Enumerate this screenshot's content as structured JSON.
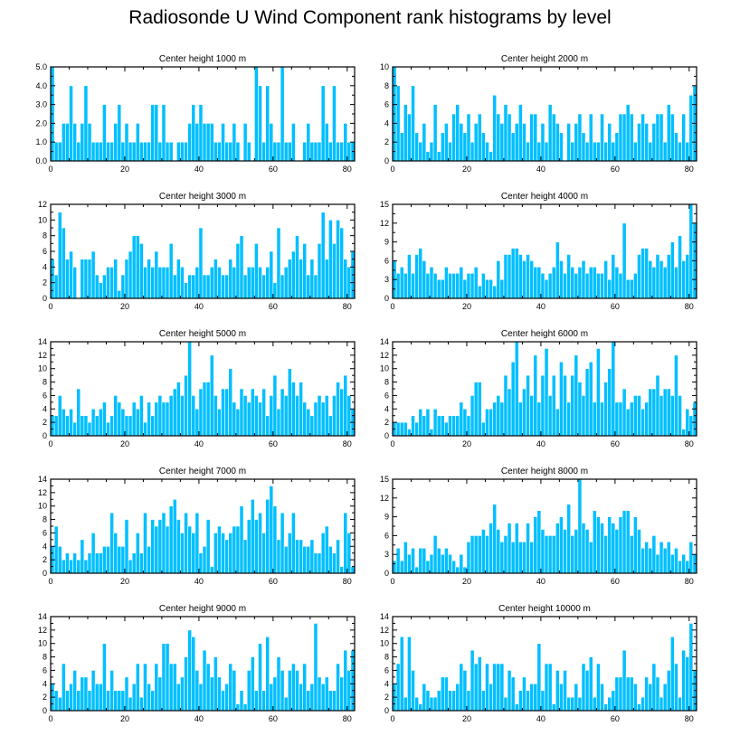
{
  "title": "Radiosonde U Wind Component rank histograms by level",
  "colors": {
    "bar": "#00BFFF",
    "barEdge": "#FFFFFF",
    "axis": "#000000"
  },
  "chart_data": [
    {
      "type": "bar",
      "title": "Center height 1000 m",
      "xlim": [
        0,
        82
      ],
      "xticks": [
        0,
        20,
        40,
        60,
        80
      ],
      "ylim": [
        0,
        5
      ],
      "yticks": [
        "0.0",
        "1.0",
        "2.0",
        "3.0",
        "4.0",
        "5.0"
      ],
      "values": [
        5,
        1,
        1,
        2,
        2,
        4,
        2,
        1,
        2,
        4,
        2,
        1,
        1,
        1,
        3,
        1,
        1,
        2,
        3,
        1,
        2,
        1,
        1,
        2,
        1,
        1,
        1,
        3,
        3,
        1,
        3,
        1,
        1,
        0,
        1,
        1,
        1,
        2,
        3,
        2,
        3,
        2,
        2,
        2,
        1,
        1,
        2,
        1,
        1,
        2,
        1,
        0,
        2,
        1,
        0,
        5,
        4,
        1,
        4,
        2,
        1,
        1,
        5,
        1,
        1,
        2,
        0,
        0,
        1,
        2,
        1,
        1,
        1,
        4,
        2,
        1,
        4,
        1,
        1,
        2,
        1,
        1
      ]
    },
    {
      "type": "bar",
      "title": "Center height 2000 m",
      "xlim": [
        0,
        82
      ],
      "xticks": [
        0,
        20,
        40,
        60,
        80
      ],
      "ylim": [
        0,
        10
      ],
      "yticks": [
        "0",
        "2",
        "4",
        "6",
        "8",
        "10"
      ],
      "values": [
        10,
        8,
        3,
        6,
        5,
        8,
        3,
        2,
        4,
        1,
        2,
        6,
        1,
        3,
        4,
        2,
        5,
        6,
        4,
        3,
        5,
        2,
        4,
        5,
        3,
        2,
        1,
        7,
        5,
        4,
        6,
        5,
        3,
        4,
        6,
        4,
        2,
        5,
        5,
        2,
        4,
        2,
        6,
        5,
        4,
        3,
        0,
        4,
        2,
        4,
        5,
        3,
        2,
        5,
        2,
        2,
        5,
        2,
        4,
        2,
        3,
        5,
        5,
        6,
        5,
        2,
        4,
        5,
        4,
        2,
        4,
        5,
        5,
        2,
        6,
        5,
        3,
        2,
        5,
        2,
        7,
        8
      ]
    },
    {
      "type": "bar",
      "title": "Center height 3000 m",
      "xlim": [
        0,
        82
      ],
      "xticks": [
        0,
        20,
        40,
        60,
        80
      ],
      "ylim": [
        0,
        12
      ],
      "yticks": [
        "0",
        "2",
        "4",
        "6",
        "8",
        "10",
        "12"
      ],
      "values": [
        5,
        3,
        11,
        9,
        5,
        6,
        4,
        0,
        5,
        5,
        5,
        6,
        3,
        2,
        3,
        4,
        4,
        5,
        1,
        3,
        5,
        6,
        8,
        8,
        7,
        4,
        5,
        4,
        6,
        4,
        4,
        4,
        7,
        3,
        5,
        4,
        2,
        3,
        3,
        4,
        9,
        3,
        3,
        4,
        5,
        4,
        3,
        3,
        5,
        4,
        7,
        8,
        3,
        4,
        4,
        7,
        4,
        3,
        4,
        6,
        2,
        9,
        3,
        4,
        5,
        6,
        8,
        5,
        7,
        3,
        5,
        3,
        7,
        11,
        5,
        10,
        7,
        10,
        9,
        5,
        4,
        6
      ]
    },
    {
      "type": "bar",
      "title": "Center height 4000 m",
      "xlim": [
        0,
        82
      ],
      "xticks": [
        0,
        20,
        40,
        60,
        80
      ],
      "ylim": [
        0,
        15
      ],
      "yticks": [
        "0",
        "3",
        "6",
        "9",
        "12",
        "15"
      ],
      "values": [
        6,
        4,
        5,
        4,
        7,
        4,
        7,
        8,
        6,
        4,
        5,
        4,
        3,
        3,
        5,
        4,
        4,
        4,
        5,
        3,
        4,
        4,
        5,
        2,
        4,
        3,
        3,
        2,
        6,
        3,
        7,
        7,
        8,
        8,
        7,
        6,
        7,
        6,
        5,
        5,
        4,
        3,
        4,
        5,
        9,
        6,
        4,
        7,
        5,
        4,
        5,
        6,
        4,
        5,
        5,
        4,
        4,
        6,
        3,
        7,
        5,
        4,
        12,
        3,
        3,
        4,
        7,
        8,
        8,
        6,
        5,
        7,
        6,
        5,
        7,
        9,
        5,
        10,
        6,
        7,
        15,
        12
      ]
    },
    {
      "type": "bar",
      "title": "Center height 5000 m",
      "xlim": [
        0,
        82
      ],
      "xticks": [
        0,
        20,
        40,
        60,
        80
      ],
      "ylim": [
        0,
        14
      ],
      "yticks": [
        "0",
        "2",
        "4",
        "6",
        "8",
        "10",
        "12",
        "14"
      ],
      "values": [
        3,
        3,
        6,
        4,
        3,
        4,
        2,
        7,
        3,
        3,
        2,
        4,
        3,
        4,
        5,
        2,
        3,
        6,
        5,
        4,
        3,
        3,
        5,
        4,
        6,
        2,
        5,
        3,
        5,
        6,
        5,
        5,
        6,
        7,
        8,
        6,
        9,
        14,
        6,
        4,
        7,
        8,
        8,
        12,
        6,
        4,
        7,
        7,
        10,
        5,
        4,
        7,
        6,
        5,
        7,
        6,
        5,
        7,
        3,
        6,
        9,
        4,
        7,
        6,
        10,
        8,
        6,
        8,
        5,
        4,
        3,
        5,
        6,
        5,
        6,
        3,
        6,
        8,
        7,
        9,
        6,
        4
      ]
    },
    {
      "type": "bar",
      "title": "Center height 6000 m",
      "xlim": [
        0,
        82
      ],
      "xticks": [
        0,
        20,
        40,
        60,
        80
      ],
      "ylim": [
        0,
        14
      ],
      "yticks": [
        "0",
        "2",
        "4",
        "6",
        "8",
        "10",
        "12",
        "14"
      ],
      "values": [
        2,
        2,
        2,
        2,
        1,
        3,
        2,
        4,
        3,
        4,
        1,
        4,
        3,
        3,
        2,
        3,
        3,
        3,
        5,
        4,
        3,
        6,
        8,
        8,
        2,
        4,
        4,
        5,
        6,
        5,
        9,
        7,
        11,
        14,
        5,
        7,
        9,
        6,
        12,
        5,
        9,
        13,
        6,
        9,
        4,
        11,
        9,
        5,
        9,
        12,
        8,
        6,
        10,
        11,
        5,
        13,
        5,
        8,
        10,
        14,
        5,
        5,
        7,
        4,
        5,
        6,
        6,
        4,
        5,
        7,
        7,
        9,
        6,
        7,
        7,
        6,
        12,
        6,
        1,
        4,
        3,
        5
      ]
    },
    {
      "type": "bar",
      "title": "Center height 7000 m",
      "xlim": [
        0,
        82
      ],
      "xticks": [
        0,
        20,
        40,
        60,
        80
      ],
      "ylim": [
        0,
        14
      ],
      "yticks": [
        "0",
        "2",
        "4",
        "6",
        "8",
        "10",
        "12",
        "14"
      ],
      "values": [
        4,
        7,
        4,
        2,
        3,
        2,
        3,
        2,
        5,
        2,
        3,
        6,
        3,
        3,
        4,
        4,
        9,
        6,
        4,
        4,
        8,
        2,
        3,
        6,
        3,
        9,
        4,
        8,
        7,
        8,
        9,
        7,
        10,
        11,
        8,
        6,
        9,
        7,
        6,
        9,
        3,
        4,
        8,
        1,
        6,
        7,
        6,
        5,
        6,
        7,
        7,
        10,
        5,
        8,
        11,
        8,
        9,
        6,
        11,
        13,
        10,
        5,
        9,
        4,
        6,
        9,
        5,
        5,
        4,
        4,
        5,
        3,
        3,
        6,
        7,
        4,
        3,
        5,
        1,
        9,
        6,
        1
      ]
    },
    {
      "type": "bar",
      "title": "Center height 8000 m",
      "xlim": [
        0,
        82
      ],
      "xticks": [
        0,
        20,
        40,
        60,
        80
      ],
      "ylim": [
        0,
        15
      ],
      "yticks": [
        "0",
        "3",
        "6",
        "9",
        "12",
        "15"
      ],
      "values": [
        2,
        4,
        2,
        5,
        3,
        4,
        1,
        4,
        4,
        2,
        3,
        6,
        4,
        3,
        4,
        3,
        2,
        1,
        3,
        1,
        5,
        6,
        6,
        6,
        7,
        6,
        8,
        11,
        7,
        5,
        6,
        8,
        5,
        8,
        5,
        5,
        8,
        5,
        9,
        10,
        7,
        6,
        6,
        6,
        8,
        9,
        7,
        11,
        6,
        7,
        15,
        8,
        7,
        5,
        10,
        9,
        8,
        6,
        9,
        8,
        7,
        9,
        10,
        10,
        6,
        9,
        7,
        4,
        5,
        4,
        6,
        3,
        5,
        4,
        5,
        3,
        4,
        2,
        3,
        2,
        5,
        3
      ]
    },
    {
      "type": "bar",
      "title": "Center height 9000 m",
      "xlim": [
        0,
        82
      ],
      "xticks": [
        0,
        20,
        40,
        60,
        80
      ],
      "ylim": [
        0,
        14
      ],
      "yticks": [
        "0",
        "2",
        "4",
        "6",
        "8",
        "10",
        "12",
        "14"
      ],
      "values": [
        4,
        3,
        2,
        7,
        3,
        4,
        6,
        3,
        5,
        5,
        3,
        6,
        4,
        4,
        10,
        3,
        6,
        3,
        3,
        3,
        5,
        2,
        4,
        7,
        2,
        7,
        4,
        3,
        7,
        5,
        10,
        10,
        7,
        7,
        4,
        5,
        8,
        12,
        11,
        6,
        4,
        9,
        7,
        5,
        8,
        5,
        3,
        4,
        7,
        6,
        1,
        3,
        1,
        6,
        8,
        3,
        10,
        3,
        11,
        4,
        5,
        8,
        6,
        2,
        6,
        7,
        6,
        4,
        7,
        3,
        4,
        13,
        5,
        4,
        5,
        3,
        3,
        7,
        5,
        9,
        6,
        9
      ]
    },
    {
      "type": "bar",
      "title": "Center height 10000 m",
      "xlim": [
        0,
        82
      ],
      "xticks": [
        0,
        20,
        40,
        60,
        80
      ],
      "ylim": [
        0,
        14
      ],
      "yticks": [
        "0",
        "2",
        "4",
        "6",
        "8",
        "10",
        "12",
        "14"
      ],
      "values": [
        4,
        7,
        11,
        2,
        11,
        6,
        2,
        1,
        4,
        3,
        2,
        2,
        3,
        5,
        5,
        3,
        3,
        4,
        7,
        6,
        3,
        9,
        7,
        8,
        3,
        7,
        4,
        7,
        7,
        7,
        2,
        6,
        5,
        1,
        3,
        5,
        3,
        4,
        4,
        10,
        3,
        7,
        7,
        1,
        6,
        4,
        6,
        2,
        2,
        4,
        2,
        7,
        6,
        8,
        2,
        7,
        4,
        1,
        2,
        3,
        5,
        5,
        9,
        5,
        5,
        4,
        1,
        2,
        5,
        4,
        7,
        5,
        2,
        4,
        6,
        11,
        7,
        2,
        9,
        8,
        13,
        6
      ]
    }
  ]
}
